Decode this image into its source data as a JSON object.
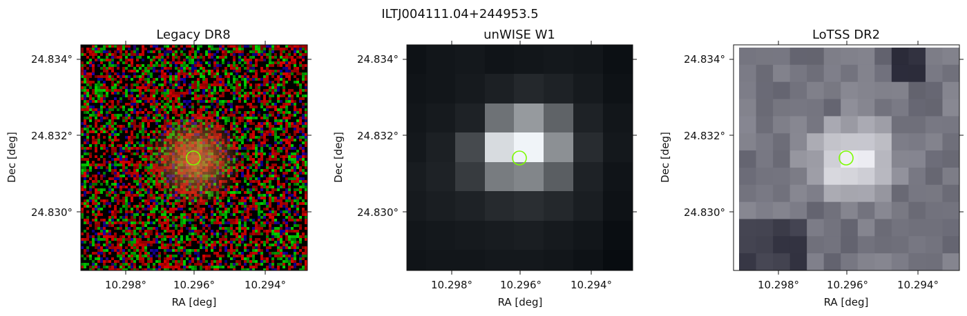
{
  "figure": {
    "title": "ILTJ004111.04+244953.5"
  },
  "panels": [
    {
      "title": "Legacy DR8",
      "xlabel": "RA [deg]",
      "ylabel": "Dec [deg]",
      "xticks": [
        "10.298°",
        "10.296°",
        "10.294°"
      ],
      "yticks": [
        "24.834°",
        "24.832°",
        "24.830°"
      ],
      "image_kind": "noisy-rgb-optical"
    },
    {
      "title": "unWISE W1",
      "xlabel": "RA [deg]",
      "ylabel": "Dec [deg]",
      "xticks": [
        "10.298°",
        "10.296°",
        "10.294°"
      ],
      "yticks": [
        "24.834°",
        "24.832°",
        "24.830°"
      ],
      "image_kind": "greyscale-blocky"
    },
    {
      "title": "LoTSS DR2",
      "xlabel": "RA [deg]",
      "ylabel": "Dec [deg]",
      "xticks": [
        "10.298°",
        "10.296°",
        "10.294°"
      ],
      "yticks": [
        "24.834°",
        "24.832°",
        "24.830°"
      ],
      "image_kind": "purple-grey-blocky"
    }
  ],
  "marker": {
    "shape": "circle",
    "color": "#7cfc00",
    "ra": 10.2959,
    "dec": 24.8314
  },
  "colors": {
    "marker": "#7cfc00",
    "axis": "#111111"
  }
}
